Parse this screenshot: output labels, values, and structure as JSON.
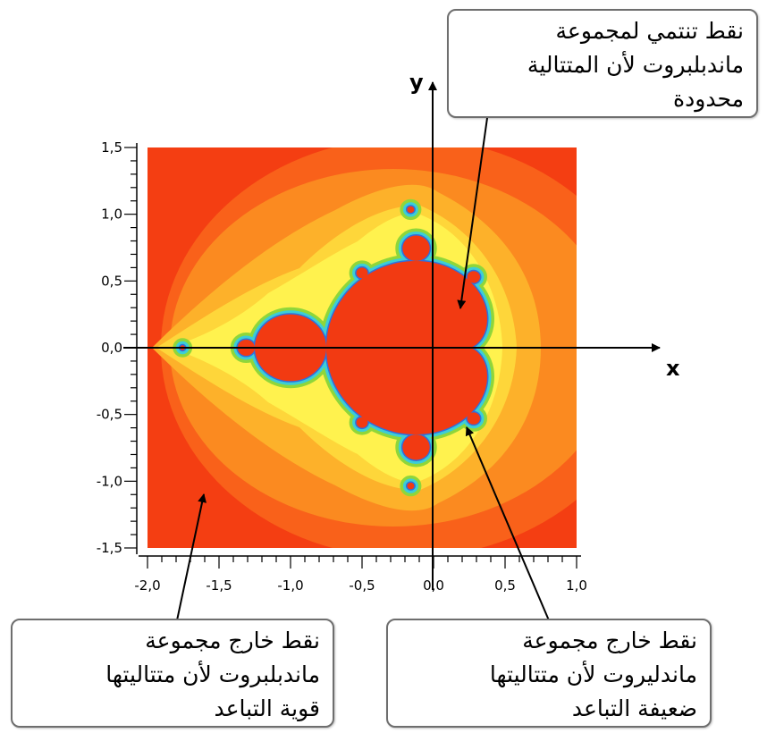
{
  "figure": {
    "axis_x_name": "x",
    "axis_y_name": "y",
    "x_ticks": [
      "-2,0",
      "-1,5",
      "-1,0",
      "-0,5",
      "0,0",
      "0,5",
      "1,0"
    ],
    "y_ticks": [
      "1,5",
      "1,0",
      "0,5",
      "0,0",
      "-0,5",
      "-1,0",
      "-1,5"
    ],
    "x_range": [
      -2.0,
      1.0
    ],
    "y_range": [
      -1.5,
      1.5
    ],
    "colors": {
      "inside": "#f23a12",
      "outer": "#f43e12",
      "band1": "#f9611a",
      "band2": "#fb8a20",
      "band3": "#fdb12a",
      "band4": "#fed63a",
      "band5": "#fff24e",
      "edge_green": "#8fd63a",
      "edge_cyan": "#3ccdd6",
      "edge_blue": "#2f6fe0"
    }
  },
  "notes": {
    "inside": [
      "نقط تنتمي لمجموعة",
      "ماندبلبروت لأن المتتالية",
      "محدودة"
    ],
    "strong": [
      "نقط خارج مجموعة",
      "ماندبلبروت لأن متتاليتها",
      "قوية التباعد"
    ],
    "weak": [
      "نقط خارج مجموعة",
      "ماندليروت لأن متتاليتها",
      "ضعيفة التباعد"
    ]
  }
}
